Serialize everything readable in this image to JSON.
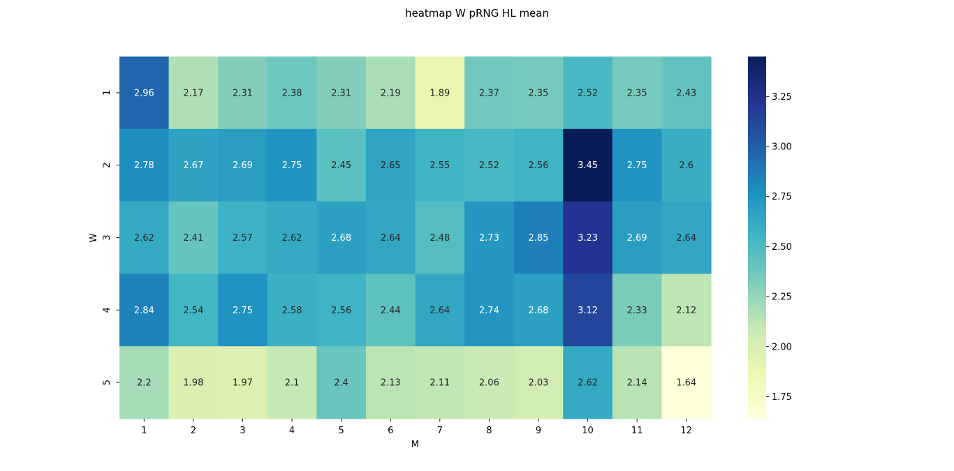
{
  "chart_data": {
    "type": "heatmap",
    "title": "heatmap W pRNG HL mean",
    "xlabel": "M",
    "ylabel": "W",
    "x_categories": [
      "1",
      "2",
      "3",
      "4",
      "5",
      "6",
      "7",
      "8",
      "9",
      "10",
      "11",
      "12"
    ],
    "y_categories": [
      "1",
      "2",
      "3",
      "4",
      "5"
    ],
    "values": [
      [
        2.96,
        2.17,
        2.31,
        2.38,
        2.31,
        2.19,
        1.89,
        2.37,
        2.35,
        2.52,
        2.35,
        2.43
      ],
      [
        2.78,
        2.67,
        2.69,
        2.75,
        2.45,
        2.65,
        2.55,
        2.52,
        2.56,
        3.45,
        2.75,
        2.6
      ],
      [
        2.62,
        2.41,
        2.57,
        2.62,
        2.68,
        2.64,
        2.48,
        2.73,
        2.85,
        3.23,
        2.69,
        2.64
      ],
      [
        2.84,
        2.54,
        2.75,
        2.58,
        2.56,
        2.44,
        2.64,
        2.74,
        2.68,
        3.12,
        2.33,
        2.12
      ],
      [
        2.2,
        1.98,
        1.97,
        2.1,
        2.4,
        2.13,
        2.11,
        2.06,
        2.03,
        2.62,
        2.14,
        1.64
      ]
    ],
    "colormap": "YlGnBu",
    "colorbar": {
      "min": 1.64,
      "max": 3.45,
      "ticks": [
        "1.75",
        "2.00",
        "2.25",
        "2.50",
        "2.75",
        "3.00",
        "3.25"
      ]
    },
    "annotations": true,
    "grid": false
  }
}
